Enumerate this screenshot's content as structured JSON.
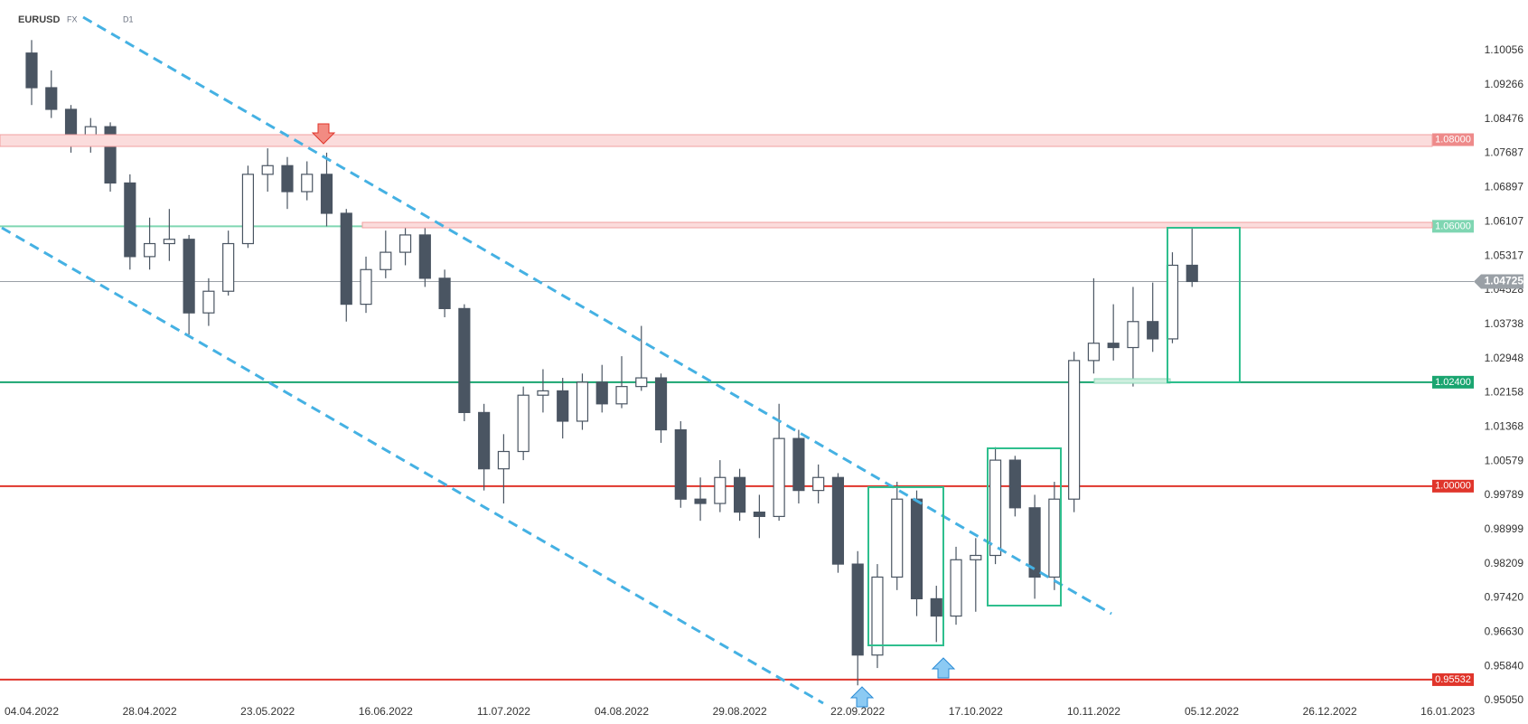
{
  "header": {
    "symbol": "EURUSD",
    "market": "FX",
    "interval": "D1"
  },
  "chart_data": {
    "type": "candlestick",
    "categories": [
      "04.04.2022",
      null,
      null,
      null,
      null,
      null,
      "28.04.2022",
      null,
      null,
      null,
      null,
      null,
      "23.05.2022",
      null,
      null,
      null,
      null,
      null,
      "16.06.2022",
      null,
      null,
      null,
      null,
      null,
      "11.07.2022",
      null,
      null,
      null,
      null,
      null,
      "04.08.2022",
      null,
      null,
      null,
      null,
      null,
      "29.08.2022",
      null,
      null,
      null,
      null,
      null,
      "22.09.2022",
      null,
      null,
      null,
      null,
      null,
      "17.10.2022",
      null,
      null,
      null,
      null,
      null,
      "10.11.2022",
      null,
      null,
      null,
      null,
      null,
      "05.12.2022",
      null,
      null,
      null,
      null,
      null,
      "26.12.2022",
      null,
      null,
      null,
      null,
      null,
      "16.01.2023"
    ],
    "open": [
      1.1,
      1.092,
      1.087,
      1.079,
      1.083,
      1.07,
      1.053,
      1.056,
      1.057,
      1.04,
      1.045,
      1.056,
      1.072,
      1.074,
      1.068,
      1.072,
      1.063,
      1.042,
      1.05,
      1.054,
      1.058,
      1.048,
      1.041,
      1.017,
      1.004,
      1.008,
      1.021,
      1.022,
      1.015,
      1.024,
      1.019,
      1.023,
      1.025,
      1.013,
      0.997,
      0.996,
      1.002,
      0.994,
      0.993,
      1.011,
      0.999,
      1.002,
      0.982,
      0.961,
      0.979,
      0.997,
      0.974,
      0.97,
      0.983,
      0.984,
      1.006,
      0.995,
      0.979,
      0.997,
      1.029,
      1.033,
      1.032,
      1.038,
      1.034,
      1.051,
      null,
      null,
      null,
      null,
      null,
      null,
      null,
      null,
      null,
      null,
      null,
      null,
      null
    ],
    "high": [
      1.103,
      1.096,
      1.088,
      1.085,
      1.084,
      1.072,
      1.062,
      1.064,
      1.058,
      1.048,
      1.059,
      1.074,
      1.078,
      1.076,
      1.075,
      1.077,
      1.064,
      1.053,
      1.059,
      1.061,
      1.06,
      1.05,
      1.042,
      1.019,
      1.012,
      1.023,
      1.027,
      1.025,
      1.026,
      1.028,
      1.03,
      1.037,
      1.026,
      1.015,
      1.002,
      1.006,
      1.004,
      0.998,
      1.019,
      1.013,
      1.005,
      1.003,
      0.985,
      0.982,
      1.001,
      0.999,
      0.977,
      0.986,
      0.988,
      1.009,
      1.007,
      0.998,
      1.001,
      1.031,
      1.048,
      1.042,
      1.046,
      1.047,
      1.054,
      1.06,
      null,
      null,
      null,
      null,
      null,
      null,
      null,
      null,
      null,
      null,
      null,
      null,
      null
    ],
    "low": [
      1.088,
      1.085,
      1.077,
      1.077,
      1.068,
      1.05,
      1.05,
      1.052,
      1.035,
      1.037,
      1.044,
      1.055,
      1.068,
      1.064,
      1.066,
      1.06,
      1.038,
      1.04,
      1.048,
      1.051,
      1.046,
      1.039,
      1.015,
      0.999,
      0.996,
      1.006,
      1.017,
      1.011,
      1.013,
      1.017,
      1.018,
      1.022,
      1.01,
      0.995,
      0.992,
      0.994,
      0.992,
      0.988,
      0.992,
      0.996,
      0.996,
      0.98,
      0.954,
      0.958,
      0.976,
      0.97,
      0.964,
      0.968,
      0.971,
      0.982,
      0.993,
      0.974,
      0.976,
      0.994,
      1.026,
      1.029,
      1.023,
      1.031,
      1.033,
      1.046,
      null,
      null,
      null,
      null,
      null,
      null,
      null,
      null,
      null,
      null,
      null,
      null,
      null
    ],
    "close": [
      1.092,
      1.087,
      1.079,
      1.083,
      1.07,
      1.053,
      1.056,
      1.057,
      1.04,
      1.045,
      1.056,
      1.072,
      1.074,
      1.068,
      1.072,
      1.063,
      1.042,
      1.05,
      1.054,
      1.058,
      1.048,
      1.041,
      1.017,
      1.004,
      1.008,
      1.021,
      1.022,
      1.015,
      1.024,
      1.019,
      1.023,
      1.025,
      1.013,
      0.997,
      0.996,
      1.002,
      0.994,
      0.993,
      1.011,
      0.999,
      1.002,
      0.982,
      0.961,
      0.979,
      0.997,
      0.974,
      0.97,
      0.983,
      0.984,
      1.006,
      0.995,
      0.979,
      0.997,
      1.029,
      1.033,
      1.032,
      1.038,
      1.034,
      1.051,
      1.04725,
      null,
      null,
      null,
      null,
      null,
      null,
      null,
      null,
      null,
      null,
      null,
      null,
      null
    ],
    "up_color": "#ffffff",
    "down_color": "#4a5562",
    "outline_color": "#4a5562",
    "ylim": [
      0.94946,
      1.11225
    ],
    "yticks": [
      1.10056,
      1.09266,
      1.08476,
      1.07687,
      1.06897,
      1.06107,
      1.05317,
      1.04528,
      1.03738,
      1.02948,
      1.02158,
      1.01368,
      1.00579,
      0.99789,
      0.98999,
      0.98209,
      {
        "value": 0.9742,
        "label": "0.97420"
      },
      {
        "value": 0.9663,
        "label": "0.96630"
      },
      {
        "value": 0.9584,
        "label": "0.95840"
      },
      {
        "value": 0.9505,
        "label": "0.95050"
      }
    ],
    "levels": [
      {
        "value": 1.08,
        "label": "1.08000",
        "color": "#ee8a8a"
      },
      {
        "value": 1.06,
        "label": "1.06000",
        "color": "#7fd6b2"
      },
      {
        "value": 1.024,
        "label": "1.02400",
        "color": "#1aa570"
      },
      {
        "value": 1.0,
        "label": "1.00000",
        "color": "#e0352b"
      },
      {
        "value": 0.95532,
        "label": "0.95532",
        "color": "#e0352b"
      }
    ],
    "last_price": 1.04725,
    "last_price_color": "#9aa0a6"
  }
}
